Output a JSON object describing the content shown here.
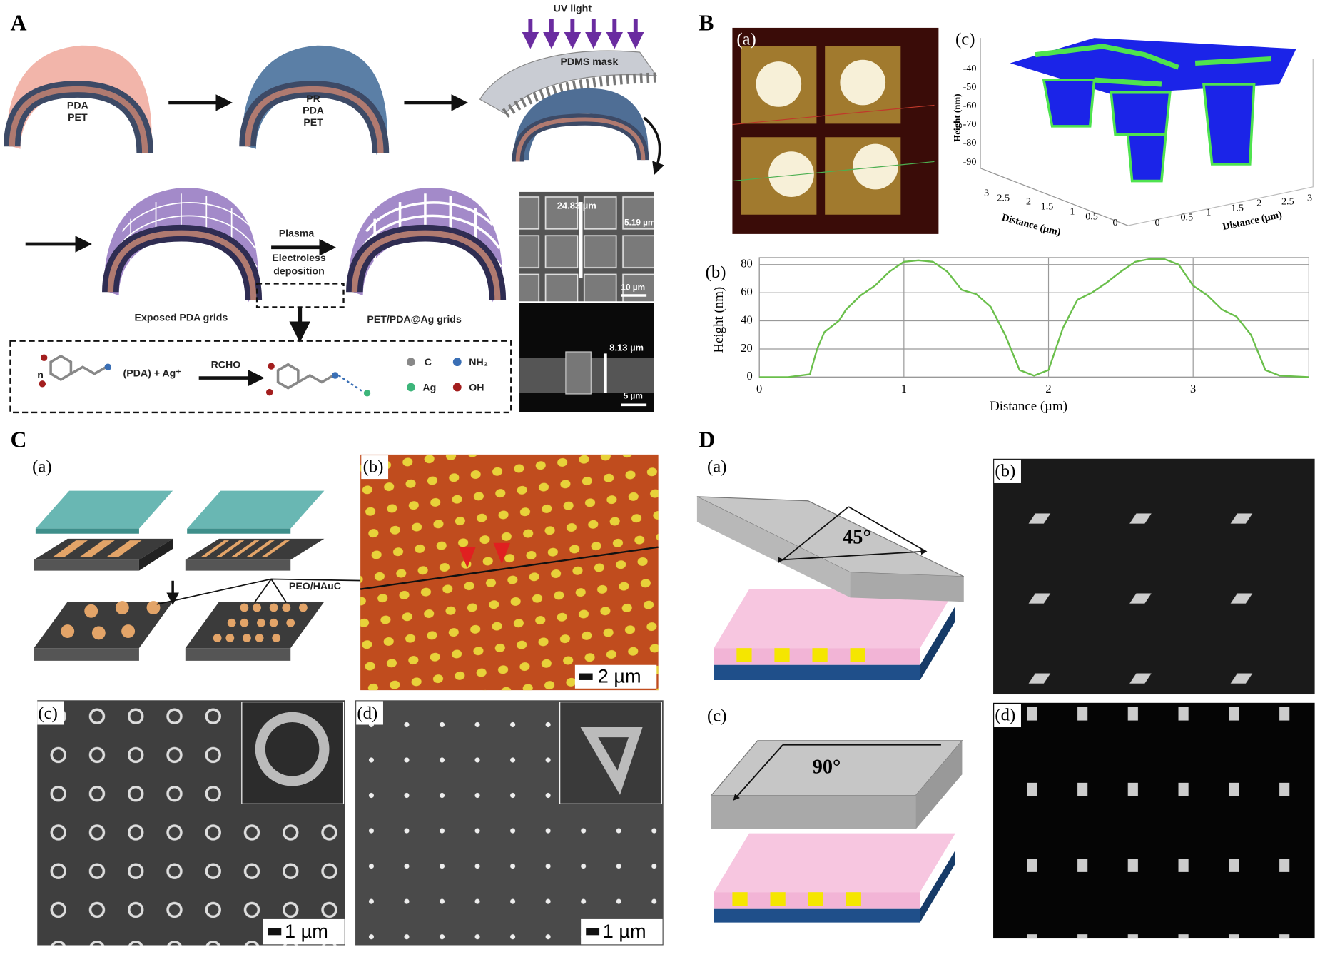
{
  "panel_A": {
    "label": "A",
    "uv_light": "UV light",
    "pdms_mask": "PDMS mask",
    "step1_layers": [
      "PDA",
      "PET"
    ],
    "step2_layers": [
      "PR",
      "PDA",
      "PET"
    ],
    "plasma": "Plasma",
    "electroless": [
      "Electroless",
      "deposition"
    ],
    "exposed_caption": "Exposed PDA grids",
    "result_caption": "PET/PDA@Ag grids",
    "sem_top": {
      "width": "24.83 µm",
      "line": "5.19 µm",
      "scale": "10 µm"
    },
    "sem_bottom": {
      "height": "8.13 µm",
      "scale": "5 µm"
    },
    "reaction": {
      "n": "n",
      "reactants": "(PDA) + Ag⁺",
      "reagent": "RCHO",
      "legend": [
        "C",
        "NH₂",
        "Ag",
        "OH"
      ]
    }
  },
  "panel_B": {
    "label": "B",
    "afm_label": "(a)",
    "surface_label": "(c)",
    "surface_ylabel": "Height (nm)",
    "surface_zticks": [
      -40,
      -50,
      -60,
      -70,
      -80,
      -90
    ],
    "surface_xlabel_left": "Distance (µm)",
    "surface_xticks_left": [
      3,
      2.5,
      2,
      1.5,
      1,
      0.5,
      0
    ],
    "surface_xlabel_right": "Distance (µm)",
    "surface_xticks_right": [
      0,
      0.5,
      1,
      1.5,
      2,
      2.5,
      3
    ],
    "profile": {
      "type": "line",
      "label": "(b)",
      "xlabel": "Distance (µm)",
      "ylabel": "Height (nm)",
      "x": [
        0,
        0.2,
        0.35,
        0.4,
        0.45,
        0.55,
        0.6,
        0.7,
        0.8,
        0.9,
        1.0,
        1.1,
        1.2,
        1.3,
        1.4,
        1.5,
        1.6,
        1.7,
        1.8,
        1.9,
        2.0,
        2.1,
        2.2,
        2.3,
        2.4,
        2.5,
        2.6,
        2.7,
        2.8,
        2.9,
        3.0,
        3.1,
        3.2,
        3.3,
        3.4,
        3.5,
        3.6,
        3.8
      ],
      "values": [
        0,
        0,
        2,
        20,
        32,
        40,
        48,
        58,
        65,
        75,
        82,
        83,
        82,
        75,
        62,
        59,
        50,
        30,
        5,
        1,
        5,
        35,
        55,
        60,
        67,
        75,
        82,
        84,
        84,
        80,
        65,
        58,
        48,
        43,
        30,
        5,
        1,
        0
      ],
      "color": "#6abf4b",
      "xlim": [
        0,
        3.8
      ],
      "ylim": [
        0,
        85
      ],
      "xticks": [
        0,
        1,
        2,
        3
      ],
      "yticks": [
        0,
        20,
        40,
        60,
        80
      ],
      "grid": true
    }
  },
  "panel_C": {
    "label": "C",
    "sub_labels": [
      "(a)",
      "(b)",
      "(c)",
      "(d)"
    ],
    "material": "PEO/HAuC",
    "scale_b": "2 µm",
    "scale_c": "1 µm",
    "scale_d": "1 µm"
  },
  "panel_D": {
    "label": "D",
    "sub_labels": [
      "(a)",
      "(b)",
      "(c)",
      "(d)"
    ],
    "angle_a": "45°",
    "angle_c": "90°"
  }
}
